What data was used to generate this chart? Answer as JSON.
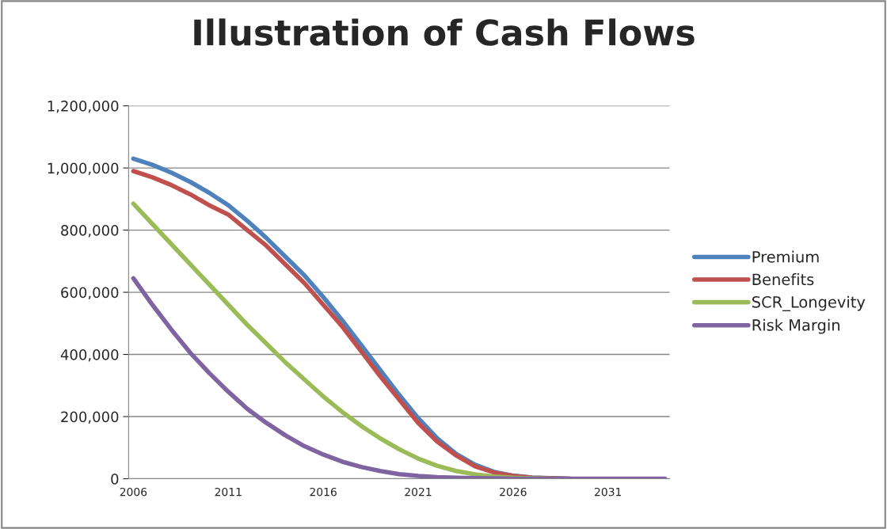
{
  "chart_data": {
    "type": "line",
    "title": "Illustration of Cash Flows",
    "categories": [
      "2006",
      null,
      null,
      null,
      null,
      "2011",
      null,
      null,
      null,
      null,
      "2016",
      null,
      null,
      null,
      null,
      "2021",
      null,
      null,
      null,
      null,
      "2026",
      null,
      null,
      null,
      null,
      "2031",
      null,
      null,
      null
    ],
    "series": [
      {
        "name": "Premium",
        "color": "#4f81bd",
        "values": [
          1030000,
          1010000,
          985000,
          955000,
          920000,
          880000,
          830000,
          775000,
          715000,
          655000,
          585000,
          510000,
          430000,
          350000,
          270000,
          195000,
          130000,
          80000,
          45000,
          22000,
          10000,
          4000,
          2000,
          0,
          null,
          null,
          null,
          null,
          null
        ]
      },
      {
        "name": "Benefits",
        "color": "#c0504d",
        "values": [
          990000,
          970000,
          945000,
          915000,
          880000,
          850000,
          800000,
          750000,
          690000,
          630000,
          560000,
          490000,
          410000,
          330000,
          255000,
          180000,
          120000,
          75000,
          40000,
          20000,
          9000,
          3000,
          1000,
          0,
          null,
          null,
          null,
          null,
          null
        ]
      },
      {
        "name": "SCR_Longevity",
        "color": "#9bbb59",
        "values": [
          885000,
          820000,
          755000,
          690000,
          625000,
          560000,
          495000,
          435000,
          375000,
          320000,
          265000,
          215000,
          170000,
          130000,
          95000,
          65000,
          42000,
          25000,
          14000,
          7000,
          3000,
          1000,
          0,
          null,
          null,
          null,
          null,
          null,
          null
        ]
      },
      {
        "name": "Risk Margin",
        "color": "#8064a2",
        "values": [
          645000,
          560000,
          480000,
          405000,
          340000,
          280000,
          225000,
          180000,
          140000,
          105000,
          78000,
          55000,
          38000,
          25000,
          15000,
          9000,
          5000,
          3000,
          2000,
          1000,
          0,
          0,
          0,
          0,
          0,
          0,
          0,
          0,
          0
        ]
      }
    ],
    "ylim": [
      0,
      1200000
    ],
    "yticks": [
      {
        "value": 0,
        "label": "0"
      },
      {
        "value": 200000,
        "label": "200,000"
      },
      {
        "value": 400000,
        "label": "400,000"
      },
      {
        "value": 600000,
        "label": "600,000"
      },
      {
        "value": 800000,
        "label": "800,000"
      },
      {
        "value": 1000000,
        "label": "1,000,000"
      },
      {
        "value": 1200000,
        "label": "1,200,000"
      }
    ],
    "grid": "y",
    "legend": "right",
    "marker": "none",
    "line_style": "solid"
  }
}
